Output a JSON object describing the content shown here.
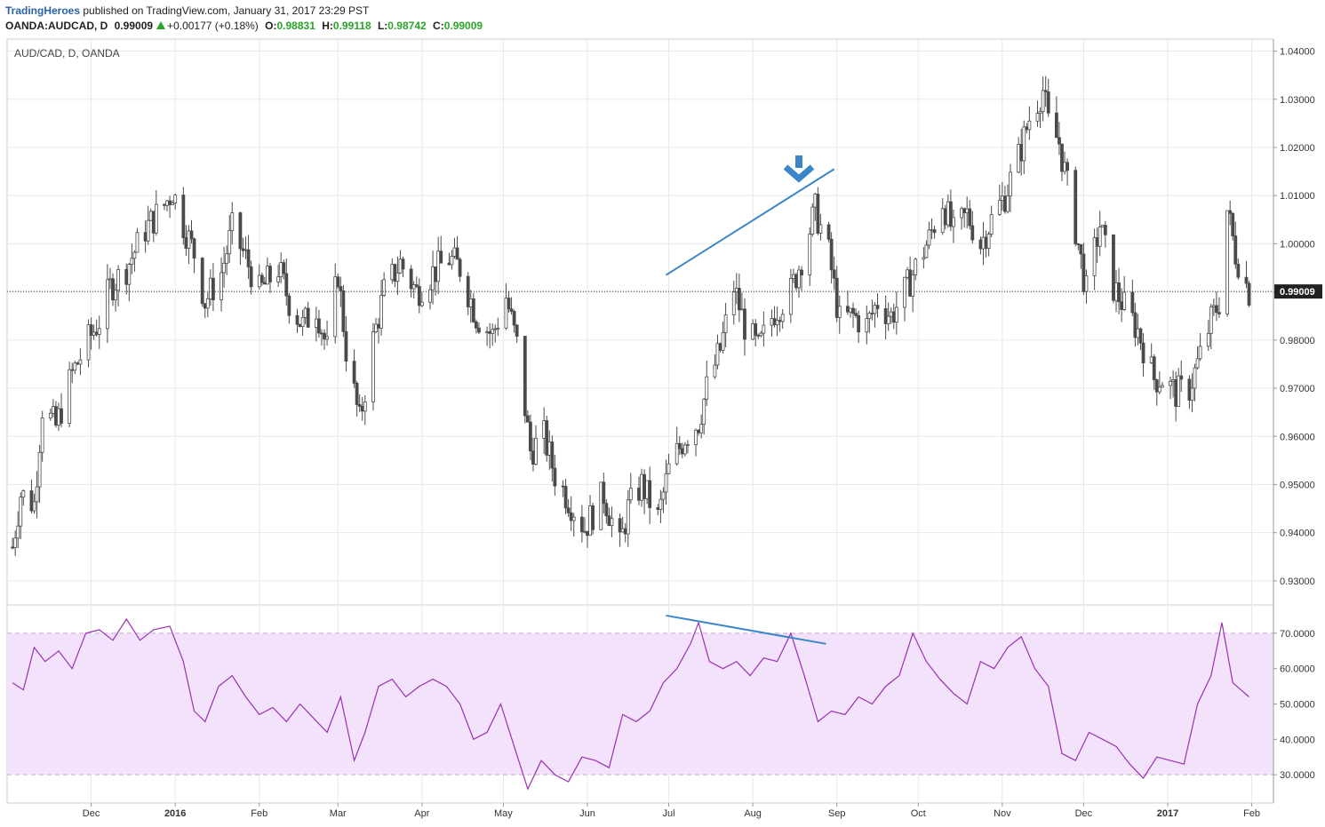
{
  "header": {
    "brand": "TradingHeroes",
    "published": " published on TradingView.com, January 31, 2017 23:29 PST",
    "symbol": "OANDA:AUDCAD, D",
    "last": "0.99009",
    "change": "+0.00177 (+0.18%)",
    "o_label": "O:",
    "o_value": "0.98831",
    "h_label": "H:",
    "h_value": "0.99118",
    "l_label": "L:",
    "l_value": "0.98742",
    "c_label": "C:",
    "c_value": "0.99009"
  },
  "chart_label": "AUD/CAD, D, OANDA",
  "colors": {
    "candle": "#4a4a4a",
    "rsi_line": "#9b2fb5",
    "rsi_band": "#f3e2fb",
    "trendline": "#3a86c8",
    "arrow": "#3a86c8",
    "grid": "#e8e8e8"
  },
  "chart_data": [
    {
      "type": "candlestick",
      "title": "AUD/CAD, D, OANDA",
      "ylim": [
        0.925,
        1.0425
      ],
      "y_ticks": [
        "1.04000",
        "1.03000",
        "1.02000",
        "1.01000",
        "1.00000",
        "0.99000",
        "0.98000",
        "0.97000",
        "0.96000",
        "0.95000",
        "0.94000",
        "0.93000"
      ],
      "last_price_label": "0.99009",
      "x_ticks": [
        "Dec",
        "2016",
        "Feb",
        "Mar",
        "Apr",
        "May",
        "Jun",
        "Jul",
        "Aug",
        "Sep",
        "Oct",
        "Nov",
        "Dec",
        "2017",
        "Feb"
      ],
      "close_path": [
        {
          "date": "2015-11-02",
          "close": 0.937
        },
        {
          "date": "2015-11-05",
          "close": 0.948
        },
        {
          "date": "2015-11-10",
          "close": 0.946
        },
        {
          "date": "2015-11-13",
          "close": 0.966
        },
        {
          "date": "2015-11-18",
          "close": 0.962
        },
        {
          "date": "2015-11-24",
          "close": 0.973
        },
        {
          "date": "2015-11-30",
          "close": 0.98
        },
        {
          "date": "2015-12-04",
          "close": 0.984
        },
        {
          "date": "2015-12-08",
          "close": 0.991
        },
        {
          "date": "2015-12-14",
          "close": 0.995
        },
        {
          "date": "2015-12-21",
          "close": 1.003
        },
        {
          "date": "2015-12-28",
          "close": 1.008
        },
        {
          "date": "2015-12-31",
          "close": 1.011
        },
        {
          "date": "2016-01-04",
          "close": 1.004
        },
        {
          "date": "2016-01-08",
          "close": 0.998
        },
        {
          "date": "2016-01-12",
          "close": 0.988
        },
        {
          "date": "2016-01-18",
          "close": 0.994
        },
        {
          "date": "2016-01-22",
          "close": 1.003
        },
        {
          "date": "2016-01-27",
          "close": 0.997
        },
        {
          "date": "2016-02-01",
          "close": 0.99
        },
        {
          "date": "2016-02-08",
          "close": 0.995
        },
        {
          "date": "2016-02-12",
          "close": 0.988
        },
        {
          "date": "2016-02-17",
          "close": 0.983
        },
        {
          "date": "2016-02-22",
          "close": 0.987
        },
        {
          "date": "2016-02-26",
          "close": 0.978
        },
        {
          "date": "2016-03-01",
          "close": 0.994
        },
        {
          "date": "2016-03-04",
          "close": 0.978
        },
        {
          "date": "2016-03-09",
          "close": 0.963
        },
        {
          "date": "2016-03-14",
          "close": 0.98
        },
        {
          "date": "2016-03-18",
          "close": 0.99
        },
        {
          "date": "2016-03-24",
          "close": 0.996
        },
        {
          "date": "2016-03-30",
          "close": 0.99
        },
        {
          "date": "2016-04-05",
          "close": 0.994
        },
        {
          "date": "2016-04-11",
          "close": 0.997
        },
        {
          "date": "2016-04-15",
          "close": 0.995
        },
        {
          "date": "2016-04-21",
          "close": 0.985
        },
        {
          "date": "2016-04-27",
          "close": 0.981
        },
        {
          "date": "2016-05-02",
          "close": 0.989
        },
        {
          "date": "2016-05-06",
          "close": 0.979
        },
        {
          "date": "2016-05-11",
          "close": 0.957
        },
        {
          "date": "2016-05-16",
          "close": 0.96
        },
        {
          "date": "2016-05-20",
          "close": 0.952
        },
        {
          "date": "2016-05-25",
          "close": 0.947
        },
        {
          "date": "2016-05-31",
          "close": 0.941
        },
        {
          "date": "2016-06-03",
          "close": 0.944
        },
        {
          "date": "2016-06-07",
          "close": 0.948
        },
        {
          "date": "2016-06-13",
          "close": 0.937
        },
        {
          "date": "2016-06-16",
          "close": 0.945
        },
        {
          "date": "2016-06-21",
          "close": 0.95
        },
        {
          "date": "2016-06-27",
          "close": 0.943
        },
        {
          "date": "2016-07-01",
          "close": 0.953
        },
        {
          "date": "2016-07-07",
          "close": 0.96
        },
        {
          "date": "2016-07-12",
          "close": 0.963
        },
        {
          "date": "2016-07-15",
          "close": 0.97
        },
        {
          "date": "2016-07-20",
          "close": 0.978
        },
        {
          "date": "2016-07-25",
          "close": 0.991
        },
        {
          "date": "2016-07-29",
          "close": 0.983
        },
        {
          "date": "2016-08-03",
          "close": 0.978
        },
        {
          "date": "2016-08-09",
          "close": 0.986
        },
        {
          "date": "2016-08-15",
          "close": 0.99
        },
        {
          "date": "2016-08-19",
          "close": 0.997
        },
        {
          "date": "2016-08-24",
          "close": 1.007
        },
        {
          "date": "2016-08-29",
          "close": 0.998
        },
        {
          "date": "2016-09-02",
          "close": 0.984
        },
        {
          "date": "2016-09-07",
          "close": 0.985
        },
        {
          "date": "2016-09-12",
          "close": 0.983
        },
        {
          "date": "2016-09-16",
          "close": 0.988
        },
        {
          "date": "2016-09-21",
          "close": 0.985
        },
        {
          "date": "2016-09-26",
          "close": 0.99
        },
        {
          "date": "2016-09-30",
          "close": 0.995
        },
        {
          "date": "2016-10-05",
          "close": 1.001
        },
        {
          "date": "2016-10-10",
          "close": 1.009
        },
        {
          "date": "2016-10-14",
          "close": 1.002
        },
        {
          "date": "2016-10-19",
          "close": 1.006
        },
        {
          "date": "2016-10-24",
          "close": 1.0
        },
        {
          "date": "2016-10-28",
          "close": 1.005
        },
        {
          "date": "2016-11-02",
          "close": 1.01
        },
        {
          "date": "2016-11-07",
          "close": 1.018
        },
        {
          "date": "2016-11-11",
          "close": 1.026
        },
        {
          "date": "2016-11-16",
          "close": 1.032
        },
        {
          "date": "2016-11-18",
          "close": 1.025
        },
        {
          "date": "2016-11-22",
          "close": 1.021
        },
        {
          "date": "2016-11-28",
          "close": 1.003
        },
        {
          "date": "2016-12-02",
          "close": 0.99
        },
        {
          "date": "2016-12-07",
          "close": 1.004
        },
        {
          "date": "2016-12-12",
          "close": 0.991
        },
        {
          "date": "2016-12-16",
          "close": 0.987
        },
        {
          "date": "2016-12-21",
          "close": 0.982
        },
        {
          "date": "2016-12-27",
          "close": 0.972
        },
        {
          "date": "2016-12-30",
          "close": 0.972
        },
        {
          "date": "2017-01-04",
          "close": 0.969
        },
        {
          "date": "2017-01-09",
          "close": 0.97
        },
        {
          "date": "2017-01-12",
          "close": 0.975
        },
        {
          "date": "2017-01-17",
          "close": 0.984
        },
        {
          "date": "2017-01-20",
          "close": 0.988
        },
        {
          "date": "2017-01-23",
          "close": 1.007
        },
        {
          "date": "2017-01-26",
          "close": 0.998
        },
        {
          "date": "2017-01-31",
          "close": 0.99
        }
      ]
    },
    {
      "type": "line",
      "y_ticks": [
        "70.0000",
        "60.0000",
        "50.0000",
        "40.0000",
        "30.0000"
      ],
      "ylim": [
        22,
        78
      ],
      "band": [
        30,
        70
      ],
      "rsi_path": [
        {
          "date": "2015-11-02",
          "value": 56
        },
        {
          "date": "2015-11-06",
          "value": 54
        },
        {
          "date": "2015-11-10",
          "value": 66
        },
        {
          "date": "2015-11-14",
          "value": 62
        },
        {
          "date": "2015-11-19",
          "value": 65
        },
        {
          "date": "2015-11-24",
          "value": 60
        },
        {
          "date": "2015-11-29",
          "value": 70
        },
        {
          "date": "2015-12-04",
          "value": 71
        },
        {
          "date": "2015-12-09",
          "value": 68
        },
        {
          "date": "2015-12-14",
          "value": 74
        },
        {
          "date": "2015-12-19",
          "value": 68
        },
        {
          "date": "2015-12-24",
          "value": 71
        },
        {
          "date": "2015-12-30",
          "value": 72
        },
        {
          "date": "2016-01-04",
          "value": 62
        },
        {
          "date": "2016-01-08",
          "value": 48
        },
        {
          "date": "2016-01-12",
          "value": 45
        },
        {
          "date": "2016-01-17",
          "value": 55
        },
        {
          "date": "2016-01-22",
          "value": 58
        },
        {
          "date": "2016-01-27",
          "value": 52
        },
        {
          "date": "2016-02-01",
          "value": 47
        },
        {
          "date": "2016-02-06",
          "value": 49
        },
        {
          "date": "2016-02-11",
          "value": 45
        },
        {
          "date": "2016-02-16",
          "value": 50
        },
        {
          "date": "2016-02-21",
          "value": 46
        },
        {
          "date": "2016-02-26",
          "value": 42
        },
        {
          "date": "2016-03-02",
          "value": 52
        },
        {
          "date": "2016-03-07",
          "value": 34
        },
        {
          "date": "2016-03-11",
          "value": 42
        },
        {
          "date": "2016-03-16",
          "value": 55
        },
        {
          "date": "2016-03-21",
          "value": 57
        },
        {
          "date": "2016-03-26",
          "value": 52
        },
        {
          "date": "2016-03-31",
          "value": 55
        },
        {
          "date": "2016-04-05",
          "value": 57
        },
        {
          "date": "2016-04-10",
          "value": 55
        },
        {
          "date": "2016-04-15",
          "value": 50
        },
        {
          "date": "2016-04-20",
          "value": 40
        },
        {
          "date": "2016-04-25",
          "value": 42
        },
        {
          "date": "2016-04-30",
          "value": 50
        },
        {
          "date": "2016-05-05",
          "value": 38
        },
        {
          "date": "2016-05-10",
          "value": 26
        },
        {
          "date": "2016-05-15",
          "value": 34
        },
        {
          "date": "2016-05-20",
          "value": 30
        },
        {
          "date": "2016-05-25",
          "value": 28
        },
        {
          "date": "2016-05-30",
          "value": 35
        },
        {
          "date": "2016-06-04",
          "value": 34
        },
        {
          "date": "2016-06-09",
          "value": 32
        },
        {
          "date": "2016-06-14",
          "value": 47
        },
        {
          "date": "2016-06-19",
          "value": 45
        },
        {
          "date": "2016-06-24",
          "value": 48
        },
        {
          "date": "2016-06-29",
          "value": 56
        },
        {
          "date": "2016-07-04",
          "value": 60
        },
        {
          "date": "2016-07-09",
          "value": 67
        },
        {
          "date": "2016-07-12",
          "value": 73
        },
        {
          "date": "2016-07-16",
          "value": 62
        },
        {
          "date": "2016-07-21",
          "value": 60
        },
        {
          "date": "2016-07-26",
          "value": 62
        },
        {
          "date": "2016-07-31",
          "value": 58
        },
        {
          "date": "2016-08-05",
          "value": 63
        },
        {
          "date": "2016-08-10",
          "value": 62
        },
        {
          "date": "2016-08-15",
          "value": 70
        },
        {
          "date": "2016-08-20",
          "value": 58
        },
        {
          "date": "2016-08-25",
          "value": 45
        },
        {
          "date": "2016-08-30",
          "value": 48
        },
        {
          "date": "2016-09-04",
          "value": 47
        },
        {
          "date": "2016-09-09",
          "value": 52
        },
        {
          "date": "2016-09-14",
          "value": 50
        },
        {
          "date": "2016-09-19",
          "value": 55
        },
        {
          "date": "2016-09-24",
          "value": 58
        },
        {
          "date": "2016-09-29",
          "value": 70
        },
        {
          "date": "2016-10-04",
          "value": 62
        },
        {
          "date": "2016-10-09",
          "value": 57
        },
        {
          "date": "2016-10-14",
          "value": 53
        },
        {
          "date": "2016-10-19",
          "value": 50
        },
        {
          "date": "2016-10-24",
          "value": 62
        },
        {
          "date": "2016-10-29",
          "value": 60
        },
        {
          "date": "2016-11-03",
          "value": 66
        },
        {
          "date": "2016-11-08",
          "value": 69
        },
        {
          "date": "2016-11-13",
          "value": 60
        },
        {
          "date": "2016-11-18",
          "value": 55
        },
        {
          "date": "2016-11-23",
          "value": 36
        },
        {
          "date": "2016-11-28",
          "value": 34
        },
        {
          "date": "2016-12-03",
          "value": 42
        },
        {
          "date": "2016-12-08",
          "value": 40
        },
        {
          "date": "2016-12-13",
          "value": 38
        },
        {
          "date": "2016-12-18",
          "value": 33
        },
        {
          "date": "2016-12-23",
          "value": 29
        },
        {
          "date": "2016-12-28",
          "value": 35
        },
        {
          "date": "2017-01-02",
          "value": 34
        },
        {
          "date": "2017-01-07",
          "value": 33
        },
        {
          "date": "2017-01-12",
          "value": 50
        },
        {
          "date": "2017-01-17",
          "value": 58
        },
        {
          "date": "2017-01-21",
          "value": 73
        },
        {
          "date": "2017-01-25",
          "value": 56
        },
        {
          "date": "2017-01-31",
          "value": 52
        }
      ]
    }
  ]
}
